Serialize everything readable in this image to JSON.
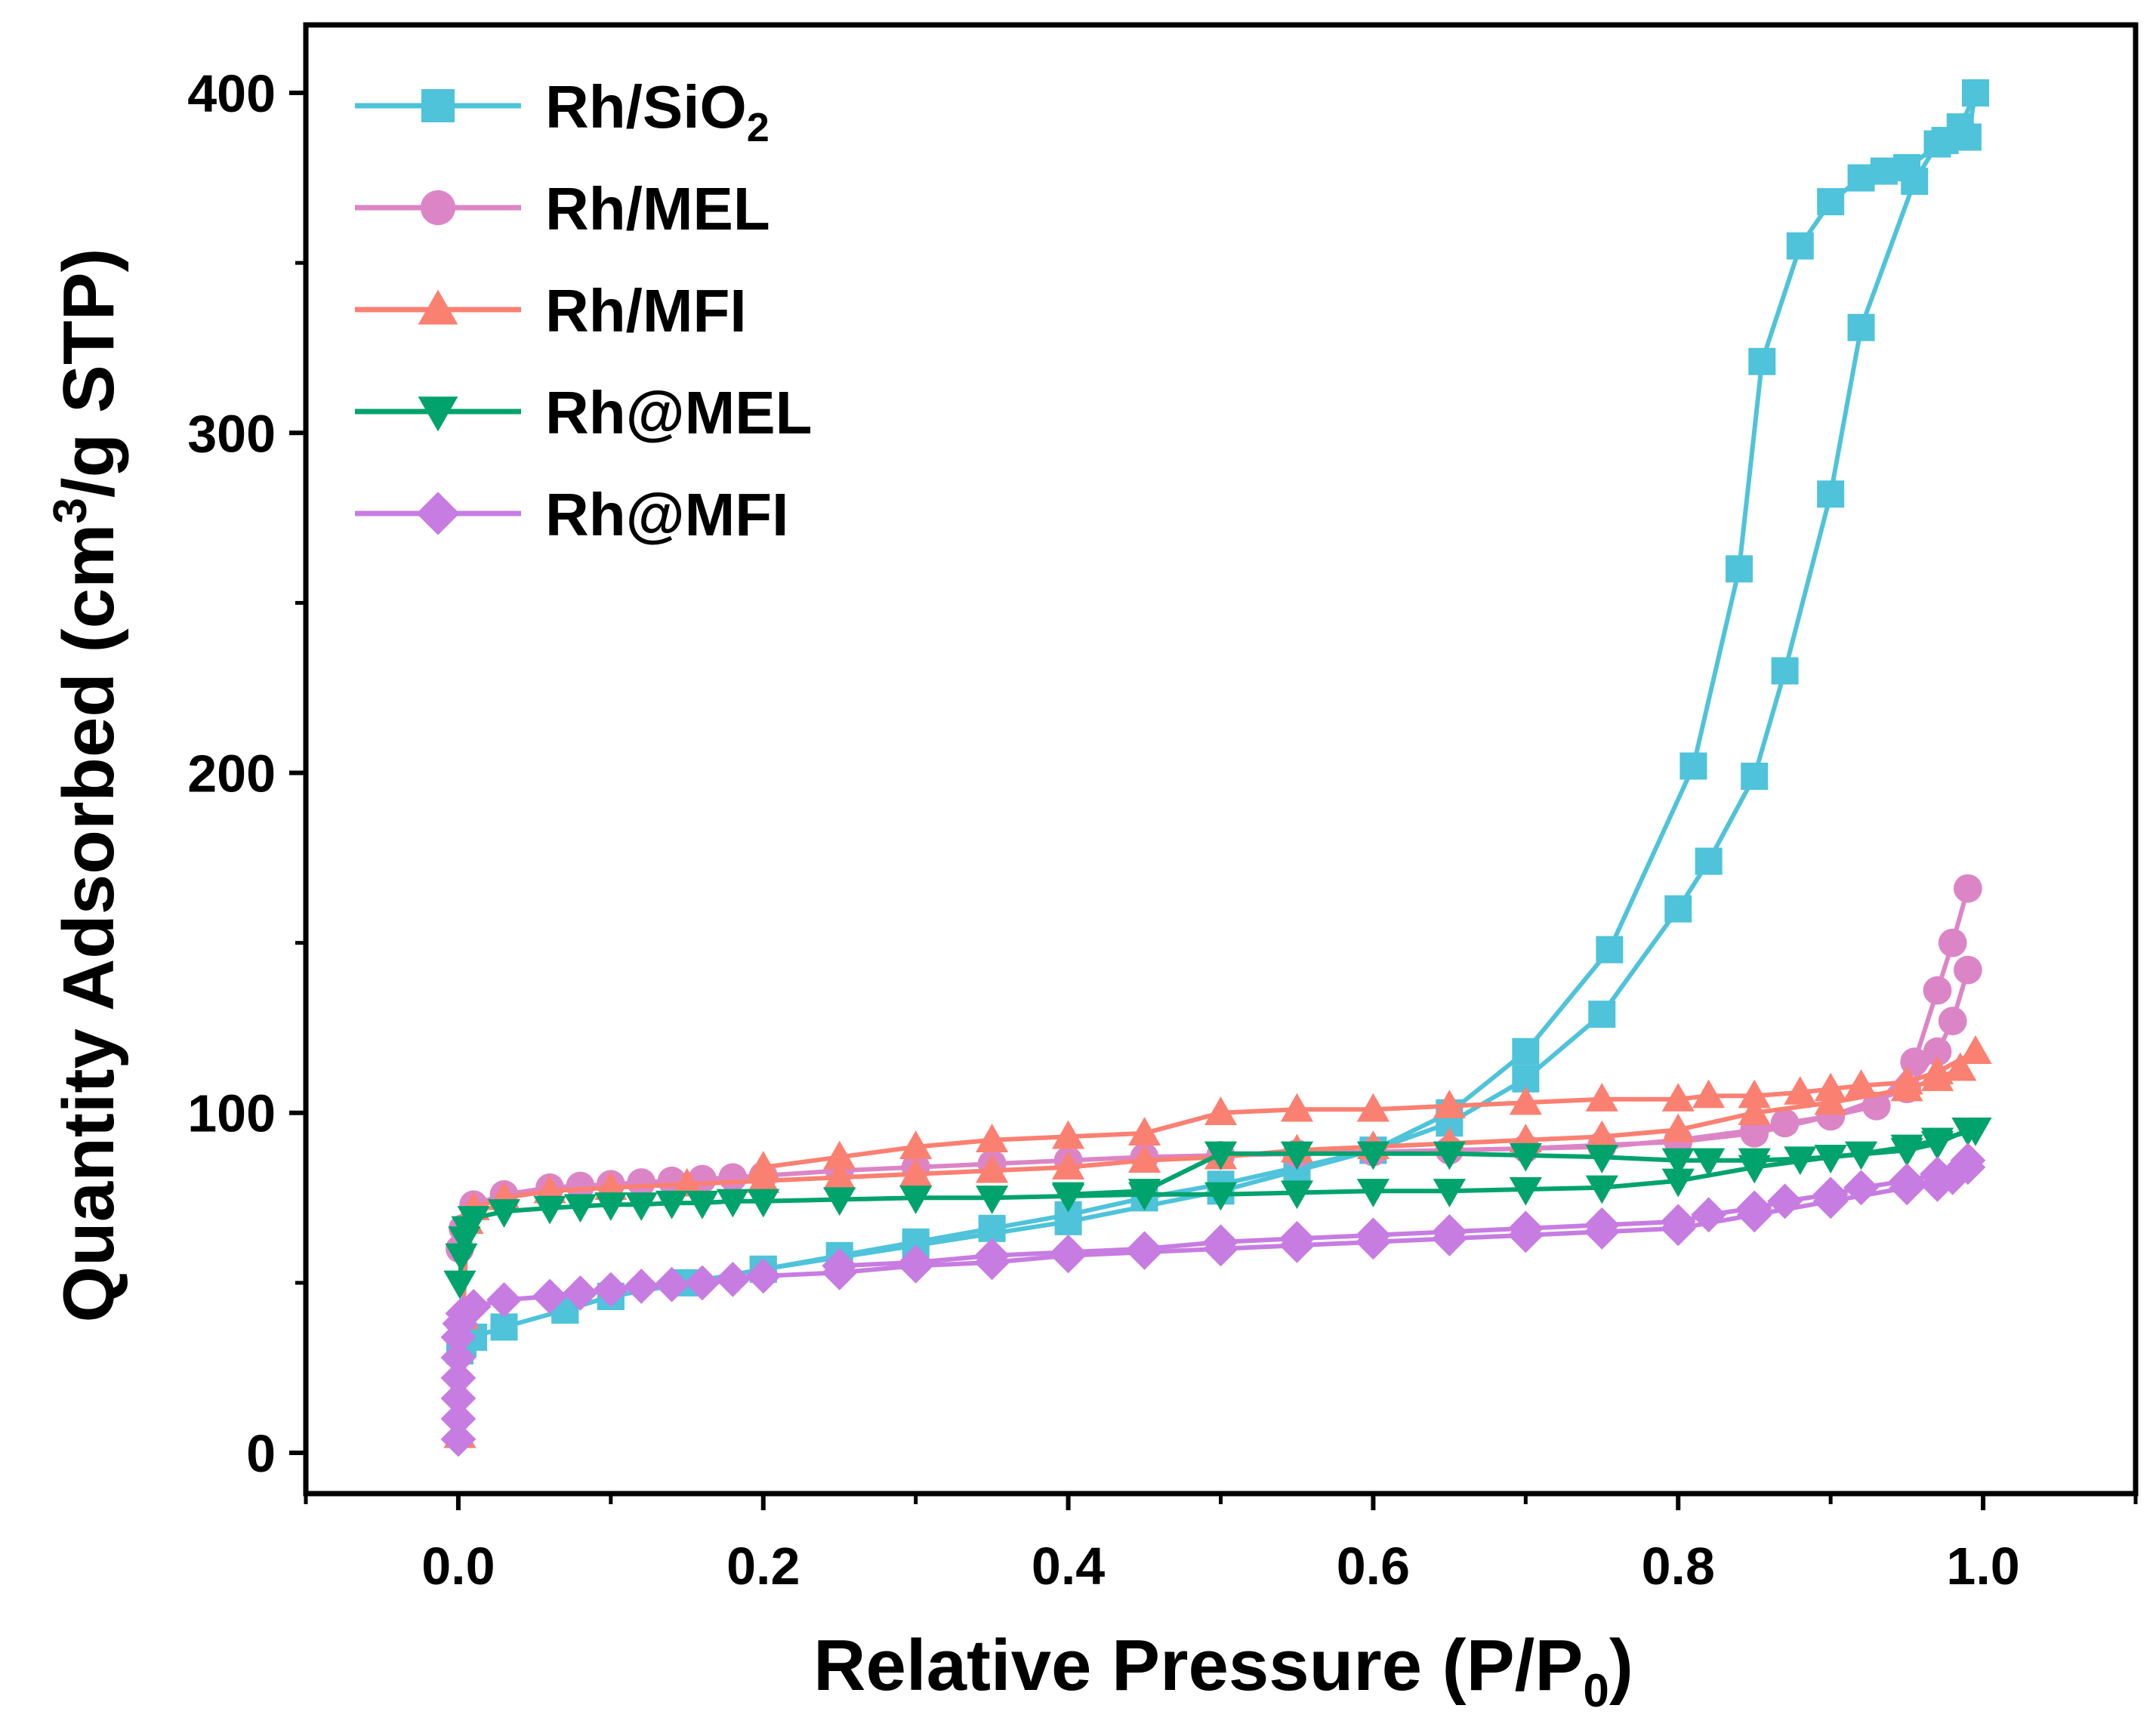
{
  "chart_data": {
    "type": "line",
    "title": "",
    "xlabel": {
      "main": "Relative Pressure (P/P",
      "sub": "0",
      "tail": ")"
    },
    "ylabel": {
      "main": "Quantity Adsorbed (cm",
      "sup": "3",
      "tail": "/g STP)"
    },
    "xlim": [
      -0.1,
      1.1
    ],
    "ylim": [
      -12,
      420
    ],
    "xticks": [
      {
        "v": 0.0,
        "label": "0.0"
      },
      {
        "v": 0.2,
        "label": "0.2"
      },
      {
        "v": 0.4,
        "label": "0.4"
      },
      {
        "v": 0.6,
        "label": "0.6"
      },
      {
        "v": 0.8,
        "label": "0.8"
      },
      {
        "v": 1.0,
        "label": "1.0"
      }
    ],
    "xminor": [
      -0.1,
      0.1,
      0.3,
      0.5,
      0.7,
      0.9,
      1.1
    ],
    "yticks": [
      {
        "v": 0,
        "label": "0"
      },
      {
        "v": 100,
        "label": "100"
      },
      {
        "v": 200,
        "label": "200"
      },
      {
        "v": 300,
        "label": "300"
      },
      {
        "v": 400,
        "label": "400"
      }
    ],
    "yminor": [
      50,
      150,
      250,
      350
    ],
    "grid": false,
    "legend_position": "top-left",
    "series": [
      {
        "name": "Rh/SiO",
        "name_sub": "2",
        "color": "#4EC3DA",
        "marker": "square",
        "adsorption": [
          [
            0.001,
            30
          ],
          [
            0.003,
            32
          ],
          [
            0.01,
            34
          ],
          [
            0.03,
            37
          ],
          [
            0.07,
            42
          ],
          [
            0.1,
            46
          ],
          [
            0.15,
            50
          ],
          [
            0.2,
            54
          ],
          [
            0.25,
            58
          ],
          [
            0.3,
            62
          ],
          [
            0.35,
            66
          ],
          [
            0.4,
            70
          ],
          [
            0.45,
            75
          ],
          [
            0.5,
            79
          ],
          [
            0.55,
            84
          ],
          [
            0.6,
            89
          ],
          [
            0.65,
            97
          ],
          [
            0.7,
            110
          ],
          [
            0.75,
            129
          ],
          [
            0.8,
            160
          ],
          [
            0.82,
            174
          ],
          [
            0.85,
            199
          ],
          [
            0.87,
            230
          ],
          [
            0.9,
            282
          ],
          [
            0.92,
            331
          ],
          [
            0.955,
            374
          ],
          [
            0.97,
            385
          ],
          [
            0.985,
            390
          ],
          [
            0.995,
            400
          ]
        ],
        "desorption": [
          [
            0.995,
            400
          ],
          [
            0.99,
            387
          ],
          [
            0.975,
            386
          ],
          [
            0.95,
            378
          ],
          [
            0.935,
            377
          ],
          [
            0.92,
            375
          ],
          [
            0.9,
            368
          ],
          [
            0.88,
            355
          ],
          [
            0.855,
            321
          ],
          [
            0.84,
            260
          ],
          [
            0.81,
            202
          ],
          [
            0.755,
            148
          ],
          [
            0.7,
            118
          ],
          [
            0.65,
            100
          ],
          [
            0.6,
            89
          ],
          [
            0.5,
            77
          ],
          [
            0.4,
            68
          ],
          [
            0.3,
            61
          ],
          [
            0.2,
            54
          ],
          [
            0.1,
            46
          ],
          [
            0.07,
            42
          ]
        ]
      },
      {
        "name": "Rh/MEL",
        "color": "#DC85C6",
        "marker": "circle",
        "adsorption": [
          [
            0.001,
            60
          ],
          [
            0.003,
            66
          ],
          [
            0.01,
            73
          ],
          [
            0.03,
            76
          ],
          [
            0.06,
            78
          ],
          [
            0.08,
            78.5
          ],
          [
            0.1,
            79
          ],
          [
            0.12,
            79.5
          ],
          [
            0.14,
            80
          ],
          [
            0.16,
            80.5
          ],
          [
            0.18,
            81
          ],
          [
            0.2,
            81.5
          ],
          [
            0.25,
            83
          ],
          [
            0.3,
            84
          ],
          [
            0.35,
            85
          ],
          [
            0.4,
            86
          ],
          [
            0.45,
            87
          ],
          [
            0.5,
            87.5
          ],
          [
            0.55,
            88
          ],
          [
            0.6,
            88.5
          ],
          [
            0.65,
            89
          ],
          [
            0.7,
            89.5
          ],
          [
            0.75,
            90.5
          ],
          [
            0.8,
            91.5
          ],
          [
            0.85,
            94
          ],
          [
            0.9,
            99
          ],
          [
            0.95,
            107
          ],
          [
            0.97,
            118
          ],
          [
            0.98,
            127
          ],
          [
            0.99,
            142
          ]
        ],
        "desorption": [
          [
            0.99,
            166
          ],
          [
            0.98,
            150
          ],
          [
            0.97,
            136
          ],
          [
            0.955,
            115
          ],
          [
            0.93,
            102
          ],
          [
            0.9,
            99
          ],
          [
            0.87,
            97
          ],
          [
            0.85,
            95
          ],
          [
            0.8,
            92
          ],
          [
            0.75,
            90
          ],
          [
            0.7,
            89.5
          ],
          [
            0.65,
            89
          ],
          [
            0.6,
            88.5
          ],
          [
            0.5,
            87.5
          ]
        ]
      },
      {
        "name": "Rh/MFI",
        "color": "#FA8072",
        "marker": "triangle-up",
        "adsorption": [
          [
            0.001,
            5
          ],
          [
            0.003,
            40
          ],
          [
            0.006,
            68
          ],
          [
            0.01,
            72
          ],
          [
            0.03,
            75
          ],
          [
            0.06,
            77
          ],
          [
            0.1,
            78
          ],
          [
            0.15,
            79
          ],
          [
            0.2,
            80
          ],
          [
            0.25,
            81
          ],
          [
            0.3,
            82
          ],
          [
            0.35,
            83
          ],
          [
            0.4,
            84
          ],
          [
            0.45,
            86
          ],
          [
            0.5,
            87
          ],
          [
            0.55,
            89
          ],
          [
            0.6,
            90
          ],
          [
            0.65,
            91
          ],
          [
            0.7,
            92
          ],
          [
            0.75,
            93
          ],
          [
            0.8,
            95
          ],
          [
            0.85,
            100
          ],
          [
            0.9,
            103
          ],
          [
            0.95,
            107
          ],
          [
            0.97,
            110
          ],
          [
            0.985,
            113
          ],
          [
            0.995,
            118
          ]
        ],
        "desorption": [
          [
            0.995,
            118
          ],
          [
            0.97,
            112
          ],
          [
            0.95,
            109
          ],
          [
            0.92,
            108
          ],
          [
            0.9,
            107
          ],
          [
            0.88,
            106
          ],
          [
            0.85,
            105
          ],
          [
            0.82,
            105
          ],
          [
            0.8,
            104
          ],
          [
            0.75,
            104
          ],
          [
            0.7,
            103
          ],
          [
            0.65,
            102
          ],
          [
            0.6,
            101
          ],
          [
            0.55,
            101
          ],
          [
            0.5,
            100
          ],
          [
            0.45,
            94
          ],
          [
            0.4,
            93
          ],
          [
            0.35,
            92
          ],
          [
            0.3,
            90
          ],
          [
            0.25,
            87
          ],
          [
            0.2,
            84
          ]
        ]
      },
      {
        "name": "Rh@MEL",
        "color": "#00A36C",
        "marker": "triangle-down",
        "adsorption": [
          [
            0.001,
            50
          ],
          [
            0.002,
            58
          ],
          [
            0.004,
            63
          ],
          [
            0.006,
            66
          ],
          [
            0.01,
            69
          ],
          [
            0.03,
            71
          ],
          [
            0.06,
            72
          ],
          [
            0.08,
            72.5
          ],
          [
            0.1,
            73
          ],
          [
            0.12,
            73
          ],
          [
            0.14,
            73.5
          ],
          [
            0.16,
            73.5
          ],
          [
            0.18,
            74
          ],
          [
            0.2,
            74
          ],
          [
            0.25,
            74.5
          ],
          [
            0.3,
            75
          ],
          [
            0.35,
            75
          ],
          [
            0.4,
            75.5
          ],
          [
            0.45,
            76
          ],
          [
            0.5,
            76
          ],
          [
            0.55,
            76.5
          ],
          [
            0.6,
            77
          ],
          [
            0.65,
            77
          ],
          [
            0.7,
            77.5
          ],
          [
            0.75,
            78
          ],
          [
            0.8,
            80
          ],
          [
            0.85,
            84
          ],
          [
            0.9,
            87
          ],
          [
            0.95,
            89
          ],
          [
            0.97,
            91
          ],
          [
            0.99,
            95
          ]
        ],
        "desorption": [
          [
            0.995,
            95
          ],
          [
            0.97,
            92
          ],
          [
            0.95,
            90
          ],
          [
            0.92,
            88
          ],
          [
            0.9,
            87
          ],
          [
            0.88,
            86.5
          ],
          [
            0.85,
            86
          ],
          [
            0.82,
            86
          ],
          [
            0.8,
            86
          ],
          [
            0.75,
            87
          ],
          [
            0.7,
            87.5
          ],
          [
            0.65,
            88
          ],
          [
            0.6,
            88
          ],
          [
            0.55,
            88
          ],
          [
            0.5,
            88
          ],
          [
            0.45,
            77
          ],
          [
            0.4,
            76
          ]
        ]
      },
      {
        "name": "Rh@MFI",
        "color": "#C77CE2",
        "marker": "diamond",
        "adsorption": [
          [
            0.0,
            4
          ],
          [
            0.0,
            10
          ],
          [
            0.0,
            16
          ],
          [
            0.0,
            22
          ],
          [
            0.0,
            28
          ],
          [
            0.0,
            34
          ],
          [
            0.001,
            38
          ],
          [
            0.003,
            41
          ],
          [
            0.01,
            43
          ],
          [
            0.03,
            45
          ],
          [
            0.06,
            46
          ],
          [
            0.08,
            47
          ],
          [
            0.1,
            48
          ],
          [
            0.12,
            49
          ],
          [
            0.14,
            49.5
          ],
          [
            0.16,
            50
          ],
          [
            0.18,
            51
          ],
          [
            0.2,
            52
          ],
          [
            0.25,
            53
          ],
          [
            0.3,
            55
          ],
          [
            0.35,
            56
          ],
          [
            0.4,
            58
          ],
          [
            0.45,
            59
          ],
          [
            0.5,
            60
          ],
          [
            0.55,
            61
          ],
          [
            0.6,
            62
          ],
          [
            0.65,
            63
          ],
          [
            0.7,
            64
          ],
          [
            0.75,
            65
          ],
          [
            0.8,
            66
          ],
          [
            0.85,
            70
          ],
          [
            0.9,
            74
          ],
          [
            0.95,
            78
          ],
          [
            0.97,
            79
          ],
          [
            0.98,
            81
          ],
          [
            0.99,
            84
          ]
        ],
        "desorption": [
          [
            0.99,
            86
          ],
          [
            0.97,
            82
          ],
          [
            0.95,
            80
          ],
          [
            0.92,
            78
          ],
          [
            0.9,
            76
          ],
          [
            0.87,
            74
          ],
          [
            0.85,
            72
          ],
          [
            0.82,
            70
          ],
          [
            0.8,
            68
          ],
          [
            0.75,
            67
          ],
          [
            0.7,
            66
          ],
          [
            0.65,
            65
          ],
          [
            0.6,
            64
          ],
          [
            0.55,
            63
          ],
          [
            0.5,
            62
          ],
          [
            0.45,
            60
          ],
          [
            0.4,
            59
          ],
          [
            0.35,
            58
          ],
          [
            0.3,
            56
          ],
          [
            0.25,
            55
          ]
        ]
      }
    ]
  }
}
